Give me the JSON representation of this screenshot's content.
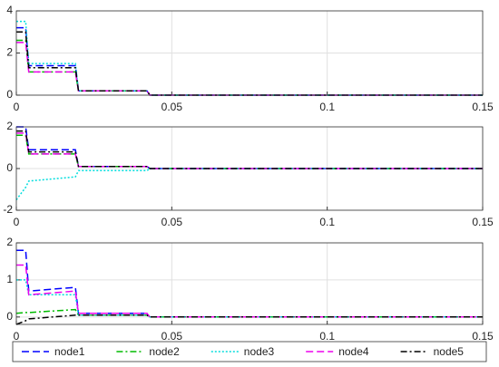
{
  "chart_data": [
    {
      "type": "line",
      "xlim": [
        0,
        0.15
      ],
      "xticks": [
        0,
        0.05,
        0.1,
        0.15
      ],
      "ylim": [
        0,
        4
      ],
      "yticks": [
        0,
        2,
        4
      ],
      "grid": true,
      "x": [
        0,
        0.003,
        0.004,
        0.019,
        0.02,
        0.042,
        0.043,
        0.15
      ],
      "series": [
        {
          "name": "node1",
          "color": "#0000ff",
          "line_style": "dashed",
          "values": [
            3.2,
            3.2,
            1.4,
            1.4,
            0.2,
            0.2,
            0,
            0
          ]
        },
        {
          "name": "node2",
          "color": "#00bb00",
          "line_style": "dash-dot",
          "values": [
            2.6,
            2.6,
            1.1,
            1.1,
            0.2,
            0.2,
            0,
            0
          ]
        },
        {
          "name": "node3",
          "color": "#00dddd",
          "line_style": "dotted",
          "values": [
            3.5,
            3.5,
            1.5,
            1.5,
            0.2,
            0.2,
            0,
            0
          ]
        },
        {
          "name": "node4",
          "color": "#ee00ee",
          "line_style": "dashed",
          "values": [
            2.5,
            2.5,
            1.1,
            1.1,
            0.2,
            0.2,
            0,
            0
          ]
        },
        {
          "name": "node5",
          "color": "#000000",
          "line_style": "dash-dot",
          "values": [
            3.0,
            3.0,
            1.3,
            1.3,
            0.2,
            0.2,
            0,
            0
          ]
        }
      ]
    },
    {
      "type": "line",
      "xlim": [
        0,
        0.15
      ],
      "xticks": [
        0,
        0.05,
        0.1,
        0.15
      ],
      "ylim": [
        -2,
        2
      ],
      "yticks": [
        -2,
        0,
        2
      ],
      "grid": true,
      "x": [
        0,
        0.003,
        0.004,
        0.019,
        0.02,
        0.042,
        0.043,
        0.15
      ],
      "series": [
        {
          "color": "#0000ff",
          "line_style": "dashed",
          "values": [
            2.0,
            2.0,
            0.9,
            0.9,
            0.1,
            0.1,
            0,
            0
          ]
        },
        {
          "color": "#00bb00",
          "line_style": "dash-dot",
          "values": [
            1.6,
            1.6,
            0.7,
            0.7,
            0.1,
            0.1,
            0,
            0
          ]
        },
        {
          "color": "#00dddd",
          "line_style": "dotted",
          "values": [
            -1.5,
            -0.9,
            -0.6,
            -0.4,
            -0.1,
            -0.1,
            0,
            0
          ]
        },
        {
          "color": "#ee00ee",
          "line_style": "dashed",
          "values": [
            1.7,
            1.7,
            0.7,
            0.7,
            0.1,
            0.1,
            0,
            0
          ]
        },
        {
          "color": "#000000",
          "line_style": "dash-dot",
          "values": [
            1.8,
            1.8,
            0.8,
            0.8,
            0.1,
            0.1,
            0,
            0
          ]
        }
      ]
    },
    {
      "type": "line",
      "xlim": [
        0,
        0.15
      ],
      "xticks": [
        0,
        0.05,
        0.1,
        0.15
      ],
      "ylim": [
        -0.2,
        2
      ],
      "yticks": [
        0,
        1,
        2
      ],
      "grid": true,
      "x": [
        0,
        0.003,
        0.004,
        0.019,
        0.02,
        0.042,
        0.043,
        0.15
      ],
      "series": [
        {
          "color": "#0000ff",
          "line_style": "dashed",
          "values": [
            1.8,
            1.8,
            0.7,
            0.8,
            0.1,
            0.1,
            0,
            0
          ]
        },
        {
          "color": "#00bb00",
          "line_style": "dash-dot",
          "values": [
            0.1,
            0.12,
            0.12,
            0.2,
            0.05,
            0.05,
            0,
            0
          ]
        },
        {
          "color": "#00dddd",
          "line_style": "dotted",
          "values": [
            1.0,
            1.0,
            0.6,
            0.6,
            0.05,
            0.05,
            0,
            0
          ]
        },
        {
          "color": "#ee00ee",
          "line_style": "dashed",
          "values": [
            1.4,
            1.4,
            0.6,
            0.7,
            0.1,
            0.1,
            0,
            0
          ]
        },
        {
          "color": "#000000",
          "line_style": "dash-dot",
          "values": [
            -0.2,
            -0.1,
            -0.05,
            0.05,
            0.05,
            0.05,
            0,
            0
          ]
        }
      ]
    }
  ]
}
